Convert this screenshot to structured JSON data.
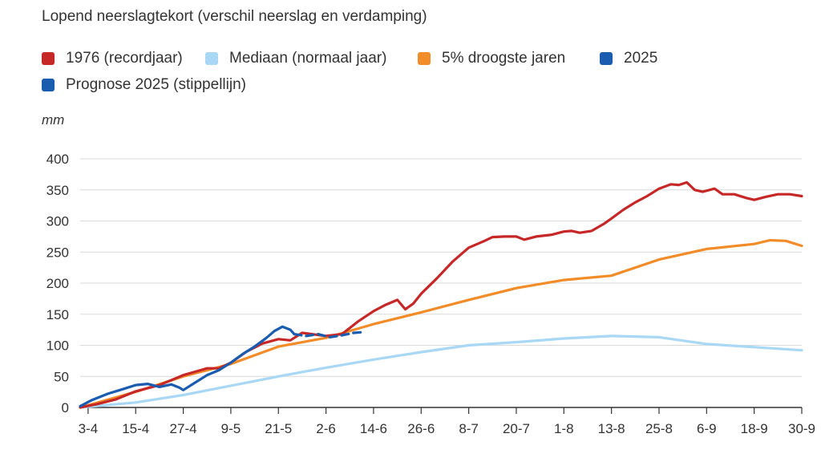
{
  "title": "Lopend neerslagtekort (verschil neerslag en verdamping)",
  "unit": "mm",
  "legend": [
    {
      "label": "1976 (recordjaar)",
      "color": "#c62828"
    },
    {
      "label": "Mediaan (normaal jaar)",
      "color": "#a8d8f5"
    },
    {
      "label": "5% droogste jaren",
      "color": "#f28c28"
    },
    {
      "label": "2025",
      "color": "#1a5cb0"
    },
    {
      "label": "Prognose 2025 (stippellijn)",
      "color": "#1a5cb0"
    }
  ],
  "chart_data": {
    "type": "line",
    "ylabel": "mm",
    "ylim": [
      0,
      400
    ],
    "yticks": [
      0,
      50,
      100,
      150,
      200,
      250,
      300,
      350,
      400
    ],
    "x_domain": [
      "1-4",
      "30-9"
    ],
    "xticks": [
      "3-4",
      "15-4",
      "27-4",
      "9-5",
      "21-5",
      "2-6",
      "14-6",
      "26-6",
      "8-7",
      "20-7",
      "1-8",
      "13-8",
      "25-8",
      "6-9",
      "18-9",
      "30-9"
    ],
    "grid": true,
    "series": [
      {
        "name": "Mediaan (normaal jaar)",
        "color": "#a8d8f5",
        "dashed": false,
        "points": [
          [
            "1-4",
            0
          ],
          [
            "15-4",
            8
          ],
          [
            "27-4",
            20
          ],
          [
            "9-5",
            35
          ],
          [
            "21-5",
            50
          ],
          [
            "2-6",
            64
          ],
          [
            "14-6",
            77
          ],
          [
            "26-6",
            89
          ],
          [
            "8-7",
            100
          ],
          [
            "20-7",
            105
          ],
          [
            "1-8",
            111
          ],
          [
            "13-8",
            115
          ],
          [
            "25-8",
            113
          ],
          [
            "6-9",
            102
          ],
          [
            "18-9",
            97
          ],
          [
            "30-9",
            92
          ]
        ]
      },
      {
        "name": "5% droogste jaren",
        "color": "#f28c28",
        "dashed": false,
        "points": [
          [
            "1-4",
            0
          ],
          [
            "15-4",
            25
          ],
          [
            "27-4",
            50
          ],
          [
            "9-5",
            70
          ],
          [
            "21-5",
            98
          ],
          [
            "2-6",
            112
          ],
          [
            "14-6",
            134
          ],
          [
            "26-6",
            153
          ],
          [
            "8-7",
            173
          ],
          [
            "20-7",
            192
          ],
          [
            "1-8",
            205
          ],
          [
            "13-8",
            212
          ],
          [
            "25-8",
            238
          ],
          [
            "6-9",
            255
          ],
          [
            "18-9",
            263
          ],
          [
            "22-9",
            269
          ],
          [
            "26-9",
            268
          ],
          [
            "30-9",
            260
          ]
        ]
      },
      {
        "name": "1976 (recordjaar)",
        "color": "#c62828",
        "dashed": false,
        "points": [
          [
            "1-4",
            0
          ],
          [
            "5-4",
            5
          ],
          [
            "10-4",
            13
          ],
          [
            "15-4",
            26
          ],
          [
            "21-4",
            36
          ],
          [
            "27-4",
            52
          ],
          [
            "3-5",
            63
          ],
          [
            "6-5",
            63
          ],
          [
            "9-5",
            72
          ],
          [
            "13-5",
            90
          ],
          [
            "17-5",
            103
          ],
          [
            "21-5",
            110
          ],
          [
            "24-5",
            108
          ],
          [
            "27-5",
            120
          ],
          [
            "2-6",
            115
          ],
          [
            "6-6",
            118
          ],
          [
            "10-6",
            138
          ],
          [
            "14-6",
            155
          ],
          [
            "17-6",
            165
          ],
          [
            "20-6",
            173
          ],
          [
            "22-6",
            158
          ],
          [
            "24-6",
            167
          ],
          [
            "26-6",
            183
          ],
          [
            "30-6",
            208
          ],
          [
            "4-7",
            235
          ],
          [
            "8-7",
            257
          ],
          [
            "12-7",
            268
          ],
          [
            "14-7",
            274
          ],
          [
            "17-7",
            275
          ],
          [
            "20-7",
            275
          ],
          [
            "22-7",
            270
          ],
          [
            "25-7",
            275
          ],
          [
            "29-7",
            278
          ],
          [
            "1-8",
            283
          ],
          [
            "3-8",
            284
          ],
          [
            "5-8",
            281
          ],
          [
            "8-8",
            284
          ],
          [
            "11-8",
            295
          ],
          [
            "13-8",
            304
          ],
          [
            "16-8",
            318
          ],
          [
            "19-8",
            330
          ],
          [
            "22-8",
            340
          ],
          [
            "25-8",
            352
          ],
          [
            "28-8",
            359
          ],
          [
            "30-8",
            358
          ],
          [
            "1-9",
            362
          ],
          [
            "3-9",
            350
          ],
          [
            "5-9",
            347
          ],
          [
            "8-9",
            352
          ],
          [
            "10-9",
            343
          ],
          [
            "13-9",
            343
          ],
          [
            "16-9",
            337
          ],
          [
            "18-9",
            334
          ],
          [
            "21-9",
            339
          ],
          [
            "24-9",
            343
          ],
          [
            "27-9",
            343
          ],
          [
            "30-9",
            340
          ]
        ]
      },
      {
        "name": "2025",
        "color": "#1a5cb0",
        "dashed": false,
        "points": [
          [
            "1-4",
            2
          ],
          [
            "4-4",
            12
          ],
          [
            "8-4",
            22
          ],
          [
            "12-4",
            30
          ],
          [
            "15-4",
            36
          ],
          [
            "18-4",
            38
          ],
          [
            "21-4",
            33
          ],
          [
            "24-4",
            37
          ],
          [
            "26-4",
            32
          ],
          [
            "27-4",
            28
          ],
          [
            "30-4",
            40
          ],
          [
            "3-5",
            52
          ],
          [
            "6-5",
            60
          ],
          [
            "9-5",
            72
          ],
          [
            "12-5",
            86
          ],
          [
            "15-5",
            98
          ],
          [
            "18-5",
            112
          ],
          [
            "20-5",
            123
          ],
          [
            "22-5",
            130
          ],
          [
            "24-5",
            125
          ],
          [
            "25-5",
            118
          ]
        ]
      },
      {
        "name": "Prognose 2025 (stippellijn)",
        "color": "#1a5cb0",
        "dashed": true,
        "points": [
          [
            "25-5",
            118
          ],
          [
            "28-5",
            115
          ],
          [
            "31-5",
            118
          ],
          [
            "3-6",
            113
          ],
          [
            "6-6",
            116
          ],
          [
            "9-6",
            120
          ],
          [
            "11-6",
            121
          ]
        ]
      }
    ]
  }
}
